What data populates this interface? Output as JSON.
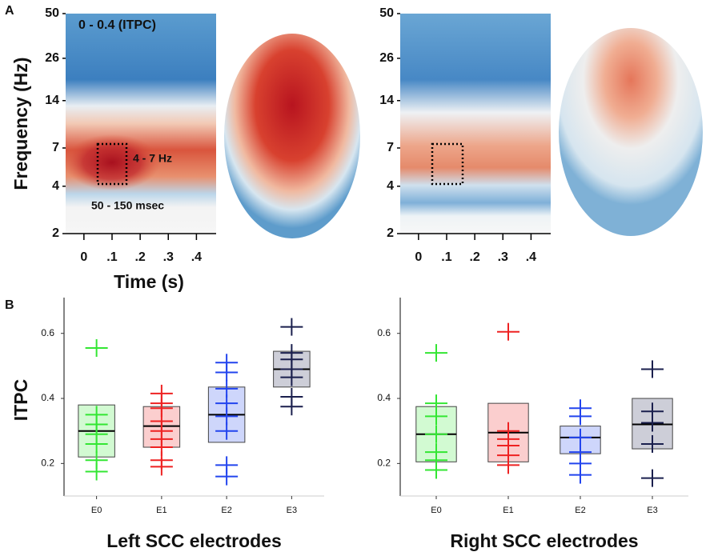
{
  "chart_data": [
    {
      "type": "spectrogram",
      "panel_label": "A",
      "annotation": "0 - 0.4 (ITPC)",
      "band_label": "4 - 7 Hz",
      "window_label": "50 - 150 msec",
      "ylabel": "Frequency (Hz)",
      "xlabel": "Time (s)",
      "log_y": true,
      "xlim": [
        -0.065,
        0.47
      ],
      "xticks": [
        0,
        {
          "value": 0.1,
          "label": ".1"
        },
        {
          "value": 0.2,
          "label": ".2"
        },
        {
          "value": 0.3,
          "label": ".3"
        },
        {
          "value": 0.4,
          "label": ".4"
        }
      ],
      "ylim": [
        2,
        50
      ],
      "yticks": [
        2,
        4,
        7,
        14,
        26,
        50
      ]
    },
    {
      "type": "spectrogram",
      "log_y": true,
      "xlim": [
        -0.065,
        0.47
      ],
      "xticks": [
        0,
        {
          "value": 0.1,
          "label": ".1"
        },
        {
          "value": 0.2,
          "label": ".2"
        },
        {
          "value": 0.3,
          "label": ".3"
        },
        {
          "value": 0.4,
          "label": ".4"
        }
      ],
      "ylim": [
        2,
        50
      ],
      "yticks": [
        2,
        4,
        7,
        14,
        26,
        50
      ]
    },
    {
      "type": "box",
      "panel_label": "B",
      "title": "Left SCC electrodes",
      "ylabel": "ITPC",
      "categories": [
        "E0",
        "E1",
        "E2",
        "E3"
      ],
      "colors": [
        "#33e633",
        "#ee2222",
        "#2244ee",
        "#1a1f4d"
      ],
      "q1": [
        0.22,
        0.25,
        0.265,
        0.435
      ],
      "median": [
        0.3,
        0.315,
        0.35,
        0.49
      ],
      "q3": [
        0.38,
        0.375,
        0.435,
        0.545
      ],
      "points": [
        [
          0.555,
          0.35,
          0.32,
          0.29,
          0.26,
          0.21,
          0.175
        ],
        [
          0.415,
          0.385,
          0.37,
          0.33,
          0.3,
          0.275,
          0.25,
          0.21,
          0.19
        ],
        [
          0.51,
          0.48,
          0.43,
          0.385,
          0.345,
          0.3,
          0.195,
          0.16
        ],
        [
          0.62,
          0.54,
          0.52,
          0.49,
          0.465,
          0.405,
          0.375
        ]
      ],
      "ylim": [
        0.1,
        0.71
      ],
      "yticks": [
        0.2,
        0.4,
        0.6
      ]
    },
    {
      "type": "box",
      "title": "Right SCC electrodes",
      "categories": [
        "E0",
        "E1",
        "E2",
        "E3"
      ],
      "colors": [
        "#33e633",
        "#ee2222",
        "#2244ee",
        "#1a1f4d"
      ],
      "q1": [
        0.205,
        0.205,
        0.23,
        0.245
      ],
      "median": [
        0.29,
        0.295,
        0.28,
        0.32
      ],
      "q3": [
        0.375,
        0.385,
        0.315,
        0.4
      ],
      "points": [
        [
          0.54,
          0.385,
          0.345,
          0.29,
          0.235,
          0.21,
          0.18
        ],
        [
          0.605,
          0.3,
          0.275,
          0.255,
          0.225,
          0.195
        ],
        [
          0.37,
          0.345,
          0.28,
          0.235,
          0.2,
          0.165
        ],
        [
          0.49,
          0.36,
          0.325,
          0.26,
          0.155
        ]
      ],
      "ylim": [
        0.1,
        0.71
      ],
      "yticks": [
        0.2,
        0.4,
        0.6
      ]
    }
  ]
}
